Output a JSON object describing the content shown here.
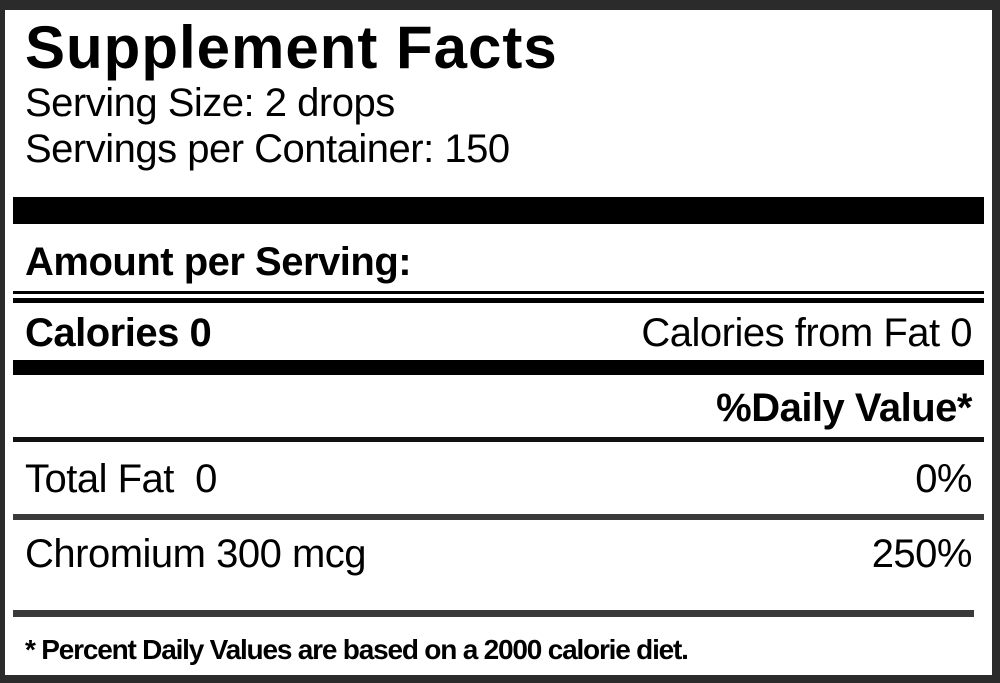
{
  "label": {
    "title": "Supplement Facts",
    "serving_size": "Serving Size: 2 drops",
    "servings_per_container": "Servings per Container: 150",
    "amount_per_serving_heading": "Amount per Serving:",
    "calories": {
      "label": "Calories 0",
      "calories_from_fat": "Calories from Fat 0"
    },
    "daily_value_heading": "%Daily Value*",
    "nutrients": [
      {
        "name": "Total Fat  0",
        "daily_value": "0%"
      },
      {
        "name": "Chromium 300 mcg",
        "daily_value": "250%"
      }
    ],
    "footnote": "* Percent Daily Values are based on a 2000 calorie diet.",
    "colors": {
      "background": "#ffffff",
      "text": "#000000",
      "border": "#2b2b2b",
      "thick_bar": "#000000",
      "rule_dark": "#111111",
      "rule_gray": "#3a3a3a"
    }
  }
}
